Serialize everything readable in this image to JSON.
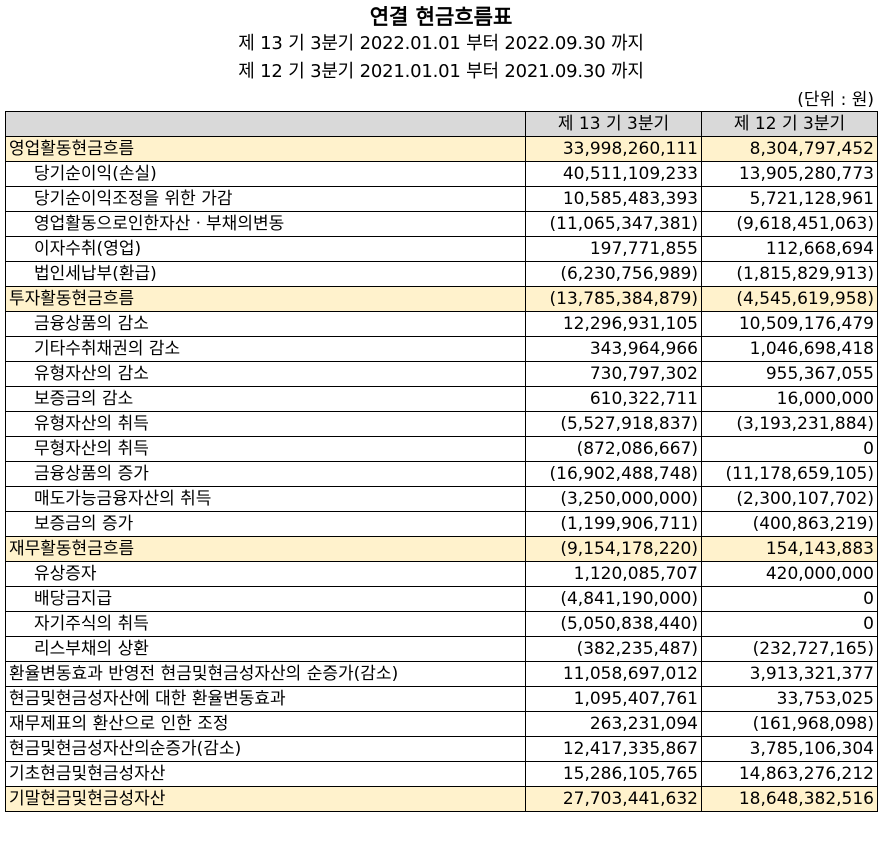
{
  "title": "연결 현금흐름표",
  "period_current": "제 13 기 3분기 2022.01.01 부터 2022.09.30 까지",
  "period_prior": "제 12 기 3분기 2021.01.01 부터 2021.09.30 까지",
  "unit": "(단위 : 원)",
  "columns": [
    "",
    "제 13 기 3분기",
    "제 12 기 3분기"
  ],
  "rows": [
    {
      "label": "영업활동현금흐름",
      "cur": "33,998,260,111",
      "prev": "8,304,797,452",
      "type": "section"
    },
    {
      "label": "당기순이익(손실)",
      "cur": "40,511,109,233",
      "prev": "13,905,280,773",
      "type": "indent"
    },
    {
      "label": "당기순이익조정을 위한 가감",
      "cur": "10,585,483,393",
      "prev": "5,721,128,961",
      "type": "indent"
    },
    {
      "label": "영업활동으로인한자산ㆍ부채의변동",
      "cur": "(11,065,347,381)",
      "prev": "(9,618,451,063)",
      "type": "indent"
    },
    {
      "label": "이자수취(영업)",
      "cur": "197,771,855",
      "prev": "112,668,694",
      "type": "indent"
    },
    {
      "label": "법인세납부(환급)",
      "cur": "(6,230,756,989)",
      "prev": "(1,815,829,913)",
      "type": "indent"
    },
    {
      "label": "투자활동현금흐름",
      "cur": "(13,785,384,879)",
      "prev": "(4,545,619,958)",
      "type": "section"
    },
    {
      "label": "금융상품의 감소",
      "cur": "12,296,931,105",
      "prev": "10,509,176,479",
      "type": "indent"
    },
    {
      "label": "기타수취채권의 감소",
      "cur": "343,964,966",
      "prev": "1,046,698,418",
      "type": "indent"
    },
    {
      "label": "유형자산의 감소",
      "cur": "730,797,302",
      "prev": "955,367,055",
      "type": "indent"
    },
    {
      "label": "보증금의 감소",
      "cur": "610,322,711",
      "prev": "16,000,000",
      "type": "indent"
    },
    {
      "label": "유형자산의 취득",
      "cur": "(5,527,918,837)",
      "prev": "(3,193,231,884)",
      "type": "indent"
    },
    {
      "label": "무형자산의 취득",
      "cur": "(872,086,667)",
      "prev": "0",
      "type": "indent"
    },
    {
      "label": "금융상품의 증가",
      "cur": "(16,902,488,748)",
      "prev": "(11,178,659,105)",
      "type": "indent"
    },
    {
      "label": "매도가능금융자산의 취득",
      "cur": "(3,250,000,000)",
      "prev": "(2,300,107,702)",
      "type": "indent"
    },
    {
      "label": "보증금의 증가",
      "cur": "(1,199,906,711)",
      "prev": "(400,863,219)",
      "type": "indent"
    },
    {
      "label": "재무활동현금흐름",
      "cur": "(9,154,178,220)",
      "prev": "154,143,883",
      "type": "section"
    },
    {
      "label": "유상증자",
      "cur": "1,120,085,707",
      "prev": "420,000,000",
      "type": "indent"
    },
    {
      "label": "배당금지급",
      "cur": "(4,841,190,000)",
      "prev": "0",
      "type": "indent"
    },
    {
      "label": "자기주식의 취득",
      "cur": "(5,050,838,440)",
      "prev": "0",
      "type": "indent"
    },
    {
      "label": "리스부채의 상환",
      "cur": "(382,235,487)",
      "prev": "(232,727,165)",
      "type": "indent"
    },
    {
      "label": "환율변동효과 반영전 현금및현금성자산의 순증가(감소)",
      "cur": "11,058,697,012",
      "prev": "3,913,321,377",
      "type": "plain"
    },
    {
      "label": "현금및현금성자산에 대한 환율변동효과",
      "cur": "1,095,407,761",
      "prev": "33,753,025",
      "type": "plain"
    },
    {
      "label": "재무제표의 환산으로 인한 조정",
      "cur": "263,231,094",
      "prev": "(161,968,098)",
      "type": "plain"
    },
    {
      "label": "현금및현금성자산의순증가(감소)",
      "cur": "12,417,335,867",
      "prev": "3,785,106,304",
      "type": "plain"
    },
    {
      "label": "기초현금및현금성자산",
      "cur": "15,286,105,765",
      "prev": "14,863,276,212",
      "type": "plain"
    },
    {
      "label": "기말현금및현금성자산",
      "cur": "27,703,441,632",
      "prev": "18,648,382,516",
      "type": "section"
    }
  ]
}
